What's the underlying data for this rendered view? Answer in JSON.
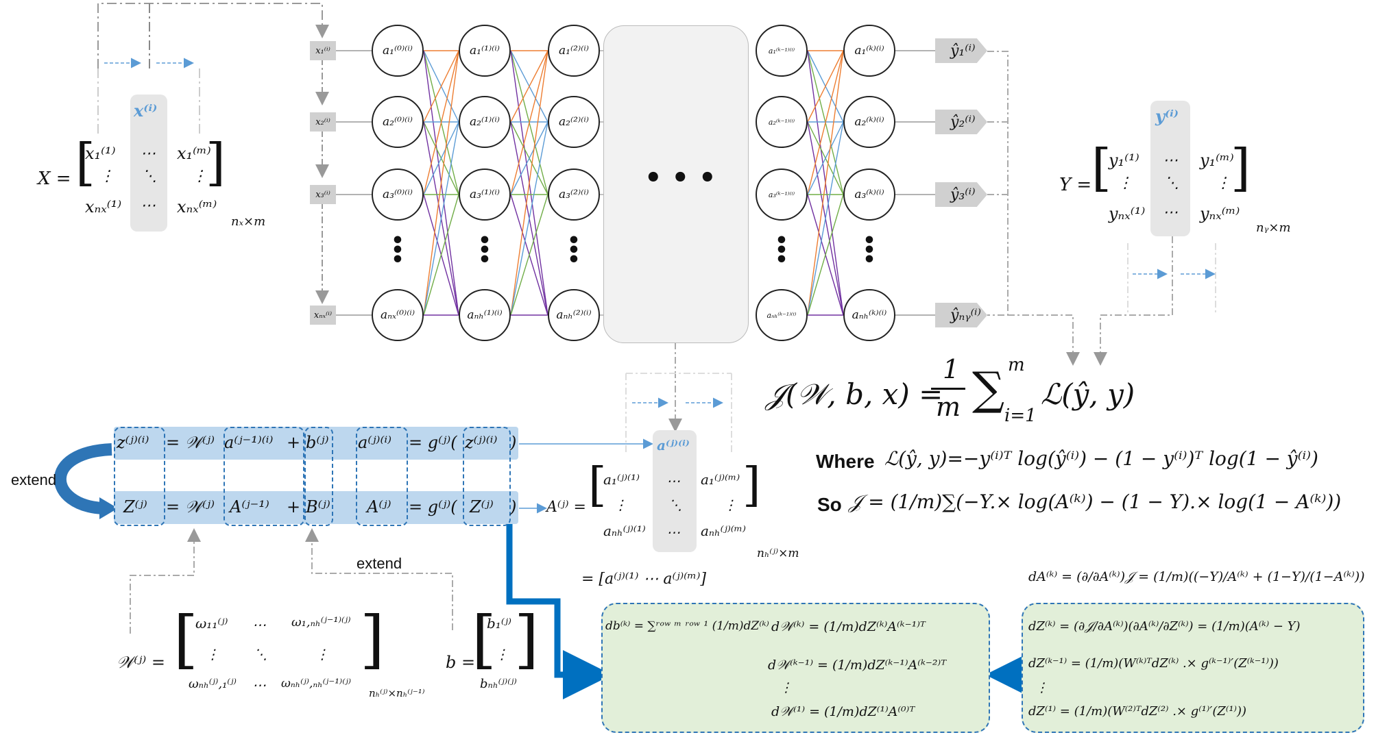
{
  "input_nodes": [
    "x₁⁽ⁱ⁾",
    "x₂⁽ⁱ⁾",
    "x₃⁽ⁱ⁾",
    "xₙₓ⁽ⁱ⁾"
  ],
  "layer0": [
    "a₁⁽⁰⁾⁽ⁱ⁾",
    "a₂⁽⁰⁾⁽ⁱ⁾",
    "a₃⁽⁰⁾⁽ⁱ⁾",
    "aₙₓ⁽⁰⁾⁽ⁱ⁾"
  ],
  "layer1": [
    "a₁⁽¹⁾⁽ⁱ⁾",
    "a₂⁽¹⁾⁽ⁱ⁾",
    "a₃⁽¹⁾⁽ⁱ⁾",
    "aₙₕ⁽¹⁾⁽ⁱ⁾"
  ],
  "layer2": [
    "a₁⁽²⁾⁽ⁱ⁾",
    "a₂⁽²⁾⁽ⁱ⁾",
    "a₃⁽²⁾⁽ⁱ⁾",
    "aₙₕ⁽²⁾⁽ⁱ⁾"
  ],
  "layerkm1": [
    "a₁⁽ᵏ⁻¹⁾⁽ⁱ⁾",
    "a₂⁽ᵏ⁻¹⁾⁽ⁱ⁾",
    "a₃⁽ᵏ⁻¹⁾⁽ⁱ⁾",
    "aₙₕ⁽ᵏ⁻¹⁾⁽ⁱ⁾"
  ],
  "layerk": [
    "a₁⁽ᵏ⁾⁽ⁱ⁾",
    "a₂⁽ᵏ⁾⁽ⁱ⁾",
    "a₃⁽ᵏ⁾⁽ⁱ⁾",
    "aₙₕ⁽ᵏ⁾⁽ⁱ⁾"
  ],
  "outputs": [
    "ŷ₁⁽ⁱ⁾",
    "ŷ₂⁽ⁱ⁾",
    "ŷ₃⁽ⁱ⁾",
    "ŷₙᵧ⁽ⁱ⁾"
  ],
  "middle_dots": "• • •",
  "X_matrix": {
    "lhs": "X =",
    "col_label": "x⁽ⁱ⁾",
    "r1c1": "x₁⁽¹⁾",
    "r1c2": "⋯",
    "r1c3": "x₁⁽ᵐ⁾",
    "r2c1": "⋮",
    "r2c2": "⋱",
    "r2c3": "⋮",
    "r3c1": "xₙₓ⁽¹⁾",
    "r3c2": "⋯",
    "r3c3": "xₙₓ⁽ᵐ⁾",
    "dim": "nₓ×m"
  },
  "Y_matrix": {
    "lhs": "Y =",
    "col_label": "y⁽ⁱ⁾",
    "r1c1": "y₁⁽¹⁾",
    "r1c2": "⋯",
    "r1c3": "y₁⁽ᵐ⁾",
    "r2c1": "⋮",
    "r2c2": "⋱",
    "r2c3": "⋮",
    "r3c1": "yₙₓ⁽¹⁾",
    "r3c2": "⋯",
    "r3c3": "yₙₓ⁽ᵐ⁾",
    "dim": "nᵧ×m"
  },
  "cost": {
    "lhs": "𝒥(𝒲, b, x) =",
    "frac_num": "1",
    "frac_den": "m",
    "sum_top": "m",
    "sum_bottom": "i=1",
    "rhs": "ℒ(ŷ, y)"
  },
  "where_label": "Where",
  "where_expr": "ℒ(ŷ, y)=−y⁽ⁱ⁾ᵀ log(ŷ⁽ⁱ⁾) − (1 − y⁽ⁱ⁾)ᵀ log(1 − ŷ⁽ⁱ⁾)",
  "so_label": "So",
  "so_expr": "𝒥 = (1/m)∑(−Y.× log(A⁽ᵏ⁾) − (1 − Y).× log(1 − A⁽ᵏ⁾))",
  "forward_single": {
    "z": "z⁽ʲ⁾⁽ⁱ⁾",
    "eq": "= 𝒲⁽ʲ⁾",
    "a_prev": "a⁽ʲ⁻¹⁾⁽ⁱ⁾",
    "plus": "+",
    "b": "b⁽ʲ⁾",
    "a": "a⁽ʲ⁾⁽ⁱ⁾",
    "eqg": "= g⁽ʲ⁾(",
    "zz": "z⁽ʲ⁾⁽ⁱ⁾",
    "close": ")"
  },
  "forward_vector": {
    "z": "Z⁽ʲ⁾",
    "eq": "= 𝒲⁽ʲ⁾",
    "a_prev": "A⁽ʲ⁻¹⁾",
    "plus": "+",
    "b": "B⁽ʲ⁾",
    "a": "A⁽ʲ⁾",
    "eqg": "= g⁽ʲ⁾(",
    "zz": "Z⁽ʲ⁾",
    "close": ")"
  },
  "extend_label_1": "extend",
  "extend_label_2": "extend",
  "A_matrix": {
    "col_label": "a⁽ʲ⁾⁽ⁱ⁾",
    "lhs": "A⁽ʲ⁾ =",
    "r1c1": "a₁⁽ʲ⁾⁽¹⁾",
    "r1c2": "⋯",
    "r1c3": "a₁⁽ʲ⁾⁽ᵐ⁾",
    "r2c1": "⋮",
    "r2c2": "⋱",
    "r2c3": "⋮",
    "r3c1": "aₙₕ⁽ʲ⁾⁽¹⁾",
    "r3c2": "⋯",
    "r3c3": "aₙₕ⁽ʲ⁾⁽ᵐ⁾",
    "dim": "nₕ⁽ʲ⁾×m",
    "row_form": "= [a⁽ʲ⁾⁽¹⁾    ⋯    a⁽ʲ⁾⁽ᵐ⁾]"
  },
  "W_matrix": {
    "lhs": "𝒲⁽ʲ⁾ =",
    "r1c1": "ω₁₁⁽ʲ⁾",
    "r1c2": "⋯",
    "r1c3": "ω₁,ₙₕ⁽ʲ⁻¹⁾⁽ʲ⁾",
    "r2c1": "⋮",
    "r2c2": "⋱",
    "r2c3": "⋮",
    "r3c1": "ωₙₕ⁽ʲ⁾,₁⁽ʲ⁾",
    "r3c2": "⋯",
    "r3c3": "ωₙₕ⁽ʲ⁾,ₙₕ⁽ʲ⁻¹⁾⁽ʲ⁾",
    "dim": "nₕ⁽ʲ⁾×nₕ⁽ʲ⁻¹⁾"
  },
  "b_matrix": {
    "lhs": "b =",
    "r1": "b₁⁽ʲ⁾",
    "r2": "⋮",
    "r3": "bₙₕ⁽ʲ⁾⁽ʲ⁾"
  },
  "dA_eq": "dA⁽ᵏ⁾ = (∂/∂A⁽ᵏ⁾)𝒥 = (1/m)((−Y)/A⁽ᵏ⁾ + (1−Y)/(1−A⁽ᵏ⁾))",
  "backprop_left": {
    "db": "db⁽ᵏ⁾ = ∑ʳᵒʷ ᵐ ʳᵒʷ ¹ (1/m)dZ⁽ᵏ⁾",
    "dW_k": "d𝒲⁽ᵏ⁾ = (1/m)dZ⁽ᵏ⁾A⁽ᵏ⁻¹⁾ᵀ",
    "dW_km1": "d𝒲⁽ᵏ⁻¹⁾ = (1/m)dZ⁽ᵏ⁻¹⁾A⁽ᵏ⁻²⁾ᵀ",
    "vdots": "⋮",
    "dW_1": "d𝒲⁽¹⁾ = (1/m)dZ⁽¹⁾A⁽⁰⁾ᵀ"
  },
  "backprop_right": {
    "dZ_k": "dZ⁽ᵏ⁾ = (∂𝒥/∂A⁽ᵏ⁾)(∂A⁽ᵏ⁾/∂Z⁽ᵏ⁾) = (1/m)(A⁽ᵏ⁾ − Y)",
    "dZ_km1": "dZ⁽ᵏ⁻¹⁾ = (1/m)(W⁽ᵏ⁾ᵀdZ⁽ᵏ⁾ .× g⁽ᵏ⁻¹⁾′(Z⁽ᵏ⁻¹⁾))",
    "vdots": "⋮",
    "dZ_1": "dZ⁽¹⁾ = (1/m)(W⁽²⁾ᵀdZ⁽²⁾ .× g⁽¹⁾′(Z⁽¹⁾))"
  },
  "colors": {
    "orange": "#ed7d31",
    "blue": "#5b9bd5",
    "green": "#70ad47",
    "purple": "#7030a0",
    "dark_blue": "#0070c0",
    "eq_fill": "#bdd7ee",
    "green_fill": "#e2efd9"
  }
}
